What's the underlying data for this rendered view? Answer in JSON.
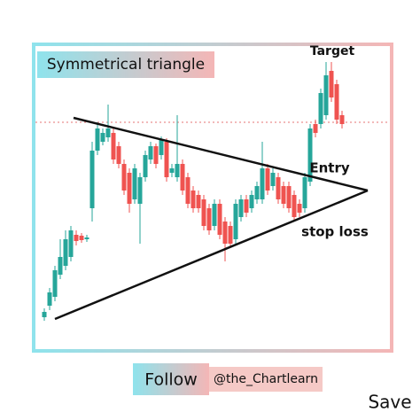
{
  "chart_data": {
    "type": "candlestick",
    "title": "Symmetrical triangle",
    "annotations": {
      "target": "Target",
      "entry": "Entry",
      "stop": "stop loss"
    },
    "footer": {
      "follow": "Follow",
      "handle": "@the_Chartlearn",
      "save": "Save"
    },
    "up_color": "#26a69a",
    "down_color": "#ef5350",
    "ylim": [
      0,
      350
    ],
    "open": [
      42,
      55,
      65,
      90,
      100,
      110,
      135,
      134,
      130,
      165,
      230,
      240,
      245,
      250,
      235,
      215,
      205,
      175,
      170,
      200,
      220,
      235,
      225,
      240,
      205,
      200,
      215,
      200,
      185,
      180,
      175,
      165,
      145,
      170,
      150,
      145,
      130,
      155,
      175,
      165,
      175,
      175,
      210,
      190,
      200,
      190,
      190,
      180,
      170,
      165,
      195,
      260,
      260,
      270,
      320,
      305,
      270
    ],
    "high": [
      52,
      75,
      100,
      130,
      140,
      145,
      140,
      137,
      135,
      240,
      262,
      255,
      282,
      255,
      240,
      220,
      210,
      215,
      205,
      230,
      240,
      238,
      246,
      244,
      215,
      270,
      220,
      205,
      190,
      185,
      180,
      170,
      175,
      175,
      155,
      150,
      175,
      180,
      180,
      185,
      195,
      240,
      215,
      210,
      205,
      195,
      195,
      185,
      175,
      205,
      260,
      265,
      300,
      330,
      330,
      310,
      275
    ],
    "low": [
      38,
      50,
      60,
      85,
      95,
      105,
      123,
      126,
      127,
      150,
      225,
      236,
      240,
      215,
      210,
      180,
      160,
      170,
      125,
      195,
      215,
      210,
      220,
      195,
      200,
      195,
      180,
      165,
      160,
      160,
      140,
      135,
      140,
      130,
      105,
      120,
      125,
      150,
      155,
      160,
      170,
      170,
      180,
      185,
      170,
      165,
      160,
      150,
      155,
      160,
      190,
      245,
      255,
      265,
      285,
      260,
      255
    ],
    "close": [
      48,
      70,
      95,
      110,
      130,
      140,
      128,
      129,
      132,
      230,
      255,
      250,
      255,
      220,
      215,
      185,
      170,
      210,
      200,
      225,
      235,
      215,
      242,
      200,
      210,
      215,
      185,
      170,
      165,
      165,
      145,
      140,
      170,
      135,
      125,
      125,
      170,
      175,
      160,
      180,
      190,
      210,
      185,
      205,
      175,
      170,
      165,
      155,
      160,
      200,
      255,
      250,
      295,
      315,
      290,
      265,
      260
    ]
  }
}
